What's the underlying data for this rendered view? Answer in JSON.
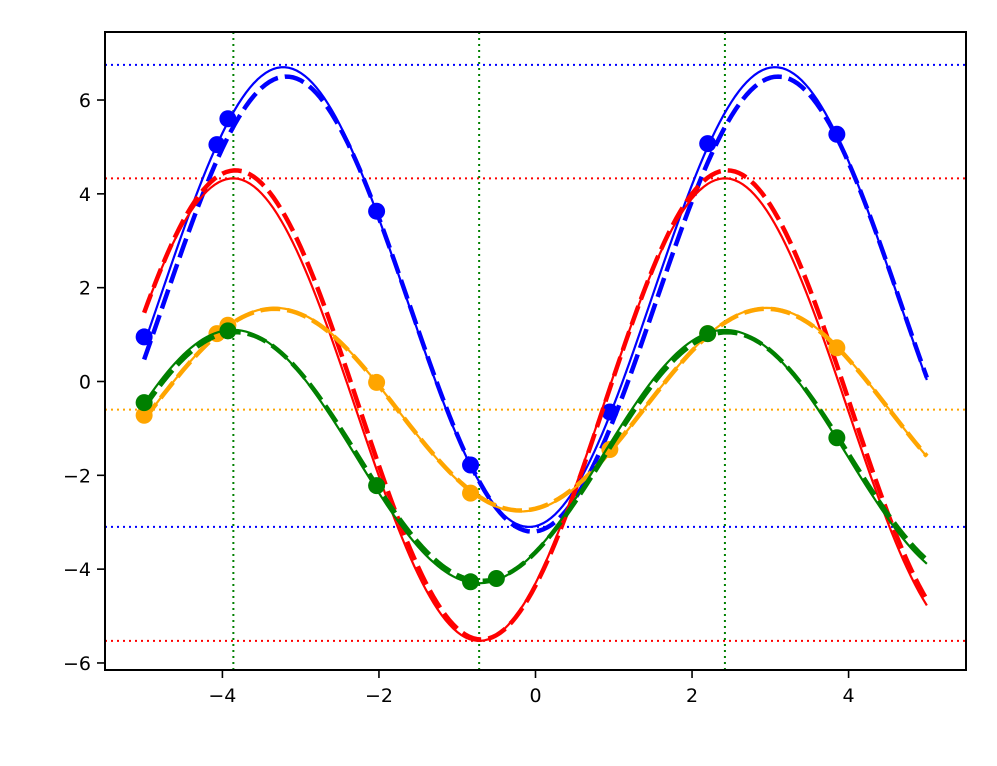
{
  "chart_data": {
    "type": "line",
    "title": "",
    "xlabel": "",
    "ylabel": "",
    "xlim": [
      -5.5,
      5.5
    ],
    "ylim": [
      -6.15,
      7.45
    ],
    "grid": false,
    "legend": "none",
    "x_ticks": [
      {
        "value": -4,
        "label": "−4"
      },
      {
        "value": -2,
        "label": "−2"
      },
      {
        "value": 0,
        "label": "0"
      },
      {
        "value": 2,
        "label": "2"
      },
      {
        "value": 4,
        "label": "4"
      }
    ],
    "y_ticks": [
      {
        "value": -6,
        "label": "−6"
      },
      {
        "value": -4,
        "label": "−4"
      },
      {
        "value": -2,
        "label": "−2"
      },
      {
        "value": 0,
        "label": "0"
      },
      {
        "value": 2,
        "label": "2"
      },
      {
        "value": 4,
        "label": "4"
      },
      {
        "value": 6,
        "label": "6"
      }
    ],
    "x_range": [
      -5,
      5
    ],
    "reference_lines": {
      "horizontal": [
        {
          "value": 6.75,
          "color": "#0000ff"
        },
        {
          "value": -3.1,
          "color": "#0000ff"
        },
        {
          "value": 4.33,
          "color": "#ff0000"
        },
        {
          "value": -5.53,
          "color": "#ff0000"
        },
        {
          "value": -0.6,
          "color": "#ffa500"
        }
      ],
      "vertical": [
        {
          "value": -3.86,
          "color": "#008000"
        },
        {
          "value": -0.72,
          "color": "#008000"
        },
        {
          "value": 2.42,
          "color": "#008000"
        }
      ]
    },
    "series": [
      {
        "color": "#0000ff",
        "fit": {
          "A": 4.9,
          "omega": 1.0,
          "x0": 3.06,
          "C": 1.8
        },
        "model": {
          "A": 4.85,
          "omega": 1.0,
          "x0": 3.1,
          "C": 1.65,
          "drift": 0.0
        },
        "points": [
          {
            "x": -5.0,
            "y": 0.95
          },
          {
            "x": -4.07,
            "y": 5.05
          },
          {
            "x": -3.93,
            "y": 5.6
          },
          {
            "x": -2.03,
            "y": 3.63
          },
          {
            "x": -0.83,
            "y": -1.78
          },
          {
            "x": 0.95,
            "y": -0.65
          },
          {
            "x": 2.2,
            "y": 5.07
          },
          {
            "x": 3.85,
            "y": 5.27
          }
        ]
      },
      {
        "color": "#ff0000",
        "fit": {
          "A": 4.93,
          "omega": 1.0,
          "x0": 2.42,
          "C": -0.6
        },
        "model": {
          "A": 5.0,
          "omega": 1.0,
          "x0": 2.45,
          "C": -0.5,
          "drift": 0.0
        },
        "points": []
      },
      {
        "color": "#ffa500",
        "fit": {
          "A": 2.17,
          "omega": 1.0,
          "x0": 2.95,
          "C": -0.6
        },
        "model": {
          "A": 2.15,
          "omega": 1.0,
          "x0": 2.95,
          "C": -0.6,
          "drift": 0.0
        },
        "points": [
          {
            "x": -5.0,
            "y": -0.72
          },
          {
            "x": -4.07,
            "y": 1.02
          },
          {
            "x": -3.93,
            "y": 1.2
          },
          {
            "x": -2.03,
            "y": -0.02
          },
          {
            "x": -0.83,
            "y": -2.38
          },
          {
            "x": 0.95,
            "y": -1.45
          },
          {
            "x": 2.2,
            "y": 1.02
          },
          {
            "x": 3.85,
            "y": 0.72
          }
        ]
      },
      {
        "color": "#008000",
        "fit": {
          "A": 2.7,
          "omega": 1.0,
          "x0": 2.42,
          "C": -1.6
        },
        "model": {
          "A": 2.65,
          "omega": 1.0,
          "x0": 2.45,
          "C": -1.6,
          "drift": 0.0
        },
        "points": [
          {
            "x": -5.0,
            "y": -0.45
          },
          {
            "x": -3.93,
            "y": 1.08
          },
          {
            "x": -2.03,
            "y": -2.22
          },
          {
            "x": -0.83,
            "y": -4.27
          },
          {
            "x": -0.5,
            "y": -4.2
          },
          {
            "x": 2.2,
            "y": 1.02
          },
          {
            "x": 3.85,
            "y": -1.2
          }
        ]
      }
    ]
  }
}
